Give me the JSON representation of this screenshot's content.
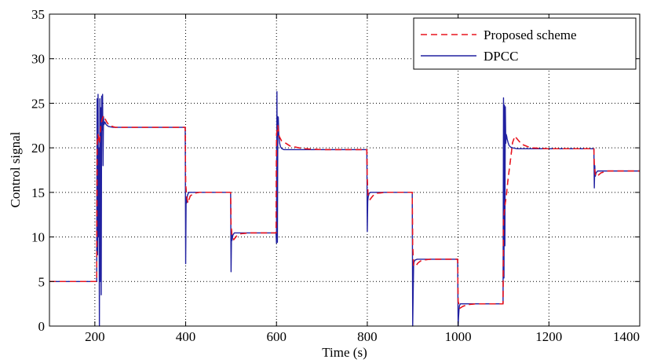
{
  "chart_data": {
    "type": "line",
    "title": "",
    "xlabel": "Time (s)",
    "ylabel": "Control signal",
    "xlim": [
      100,
      1400
    ],
    "ylim": [
      0,
      35
    ],
    "xticks": [
      200,
      400,
      600,
      800,
      1000,
      1200,
      1400
    ],
    "yticks": [
      0,
      5,
      10,
      15,
      20,
      25,
      30,
      35
    ],
    "grid": true,
    "legend_position": "top-right",
    "series": [
      {
        "name": "Proposed scheme",
        "color": "#e8141e",
        "dash": "dashed",
        "x": [
          100,
          204,
          205,
          207,
          210,
          213,
          216,
          219,
          222,
          226,
          232,
          245,
          300,
          399,
          400,
          402,
          405,
          410,
          418,
          430,
          450,
          499,
          500,
          502,
          506,
          512,
          520,
          540,
          599,
          600,
          603,
          606,
          611,
          618,
          630,
          660,
          700,
          799,
          800,
          802,
          806,
          812,
          820,
          840,
          899,
          900,
          902,
          906,
          912,
          920,
          940,
          999,
          1000,
          1004,
          1010,
          1020,
          1040,
          1099,
          1100,
          1103,
          1106,
          1110,
          1115,
          1120,
          1125,
          1130,
          1140,
          1160,
          1200,
          1299,
          1300,
          1303,
          1308,
          1315,
          1330,
          1400
        ],
        "y": [
          5,
          5,
          20.5,
          21.5,
          20.5,
          22.5,
          23.2,
          23.6,
          23.3,
          22.9,
          22.5,
          22.3,
          22.3,
          22.3,
          16.0,
          14.6,
          13.8,
          14.6,
          14.9,
          15.0,
          15.0,
          15.0,
          11.4,
          10.2,
          9.7,
          10.1,
          10.35,
          10.45,
          10.45,
          21.5,
          22.5,
          21.3,
          20.8,
          20.6,
          20.2,
          19.9,
          19.8,
          19.8,
          16.5,
          14.5,
          14.2,
          14.6,
          14.9,
          15.0,
          15.0,
          9.0,
          6.8,
          6.7,
          7.1,
          7.4,
          7.5,
          7.5,
          2.8,
          2.0,
          2.2,
          2.4,
          2.5,
          2.5,
          12.0,
          13.5,
          14.5,
          16.5,
          18.5,
          20.6,
          21.3,
          21.0,
          20.4,
          20.0,
          19.9,
          19.9,
          17.9,
          16.8,
          16.9,
          17.2,
          17.4,
          17.4
        ]
      },
      {
        "name": "DPCC",
        "color": "#2020a0",
        "dash": "solid",
        "x": [
          100,
          204,
          205,
          206,
          207,
          208,
          209,
          210,
          211,
          212,
          213,
          214,
          215,
          216,
          217,
          218,
          219,
          220,
          222,
          225,
          230,
          240,
          260,
          399,
          400,
          401,
          402,
          404,
          407,
          412,
          420,
          499,
          500,
          501,
          502,
          504,
          507,
          512,
          520,
          599,
          600,
          601,
          602,
          603,
          604,
          605,
          606,
          607,
          609,
          612,
          616,
          620,
          630,
          700,
          799,
          800,
          801,
          802,
          804,
          807,
          812,
          820,
          899,
          900,
          901,
          902,
          903,
          905,
          910,
          999,
          1000,
          1001,
          1002,
          1003,
          1005,
          1010,
          1099,
          1100,
          1101,
          1102,
          1103,
          1104,
          1105,
          1106,
          1107,
          1108,
          1109,
          1110,
          1112,
          1115,
          1120,
          1130,
          1150,
          1200,
          1299,
          1300,
          1301,
          1302,
          1304,
          1307,
          1312,
          1320,
          1400
        ],
        "y": [
          5,
          5,
          25.5,
          8,
          26.0,
          10,
          20.0,
          0,
          25.5,
          5,
          24.5,
          3.5,
          25.8,
          22,
          26.0,
          18,
          23.5,
          22.6,
          22.9,
          22.6,
          22.4,
          22.3,
          22.3,
          22.3,
          7.0,
          14.5,
          13.8,
          14.7,
          15.0,
          15.0,
          15.0,
          15.0,
          6.1,
          10.5,
          9.6,
          10.2,
          10.45,
          10.45,
          10.45,
          10.45,
          9.3,
          26.3,
          9.4,
          23.5,
          23.4,
          21.6,
          21.0,
          20.5,
          20.1,
          19.9,
          19.8,
          19.8,
          19.8,
          19.8,
          19.8,
          10.6,
          14.0,
          14.5,
          14.9,
          15.0,
          15.0,
          15.0,
          15.0,
          0,
          3.5,
          6.8,
          7.2,
          7.4,
          7.5,
          7.5,
          0,
          1.0,
          1.8,
          2.3,
          2.5,
          2.5,
          2.5,
          25.6,
          5.4,
          24.8,
          9.0,
          24.6,
          20.5,
          21.5,
          21.3,
          21.0,
          20.8,
          20.6,
          20.3,
          20.1,
          20.0,
          19.9,
          19.9,
          19.9,
          19.9,
          15.5,
          18.0,
          16.8,
          17.2,
          17.4,
          17.4,
          17.4,
          17.4
        ]
      }
    ]
  }
}
